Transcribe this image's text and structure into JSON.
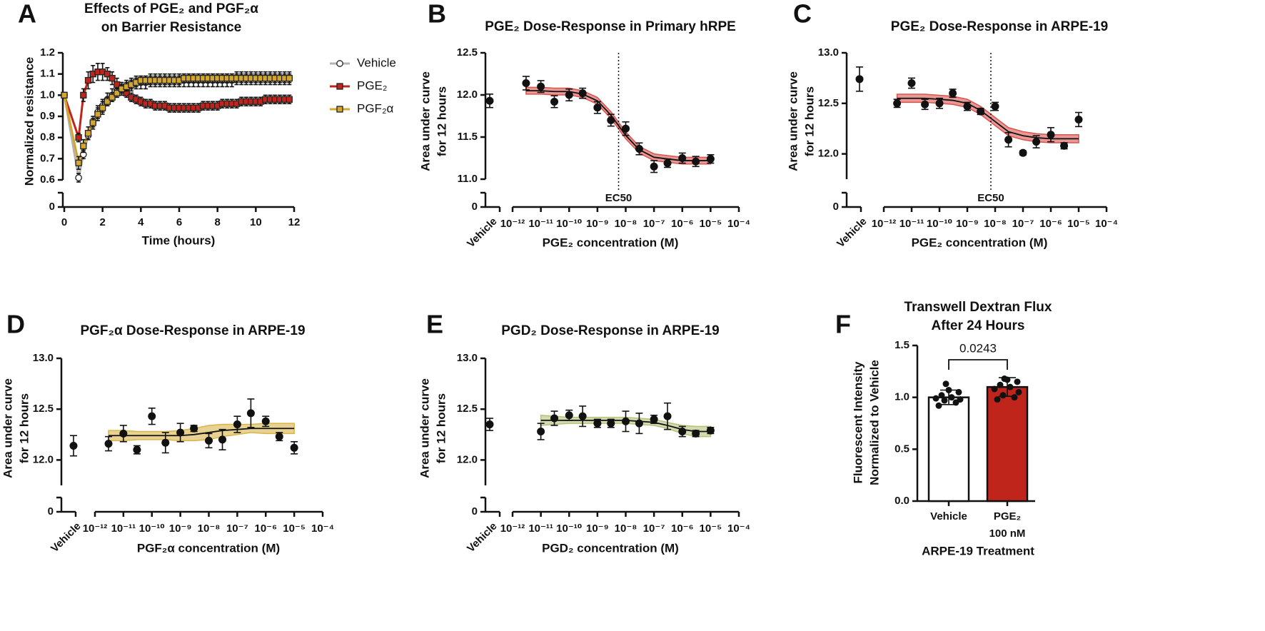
{
  "chart_data": [
    {
      "type": "line",
      "panel": "A",
      "title": [
        "Effects of PGE₂ and PGF₂α",
        "on Barrier Resistance"
      ],
      "xlabel": "Time (hours)",
      "ylabel": [
        "Normalized resistance"
      ],
      "xlim": [
        0,
        12
      ],
      "xticks": [
        0,
        2,
        4,
        6,
        8,
        10,
        12
      ],
      "ylim": [
        0.6,
        1.2
      ],
      "yticks": [
        0.6,
        0.7,
        0.8,
        0.9,
        {
          "value": 1,
          "label": "1.0"
        },
        1.1,
        1.2
      ],
      "ybreak_ticks": [
        0
      ],
      "x": [
        0,
        0.75,
        1,
        1.25,
        1.5,
        1.75,
        2,
        2.25,
        2.5,
        2.75,
        3,
        3.25,
        3.5,
        3.75,
        4,
        4.25,
        4.5,
        4.75,
        5,
        5.25,
        5.5,
        5.75,
        6,
        6.25,
        6.5,
        6.75,
        7,
        7.25,
        7.5,
        7.75,
        8,
        8.25,
        8.5,
        8.75,
        9,
        9.25,
        9.5,
        9.75,
        10,
        10.25,
        10.5,
        10.75,
        11,
        11.25,
        11.5,
        11.75
      ],
      "series": [
        {
          "name": "Vehicle",
          "color": "#b3b3b3",
          "marker": "circle",
          "values": [
            1.0,
            0.61,
            0.72,
            0.81,
            0.87,
            0.92,
            0.95,
            0.98,
            1.0,
            1.02,
            1.03,
            1.04,
            1.05,
            1.06,
            1.06,
            1.06,
            1.07,
            1.07,
            1.07,
            1.07,
            1.07,
            1.07,
            1.07,
            1.07,
            1.07,
            1.07,
            1.07,
            1.07,
            1.07,
            1.07,
            1.07,
            1.07,
            1.07,
            1.07,
            1.08,
            1.08,
            1.08,
            1.08,
            1.08,
            1.08,
            1.08,
            1.08,
            1.08,
            1.08,
            1.08,
            1.08
          ],
          "errors": [
            0,
            0.02,
            0.02,
            0.02,
            0.02,
            0.03,
            0.03,
            0.03,
            0.03,
            0.03,
            0.03,
            0.03,
            0.03,
            0.03,
            0.03,
            0.03,
            0.03,
            0.03,
            0.03,
            0.03,
            0.03,
            0.03,
            0.03,
            0.03,
            0.03,
            0.03,
            0.03,
            0.03,
            0.03,
            0.03,
            0.03,
            0.03,
            0.03,
            0.03,
            0.03,
            0.03,
            0.03,
            0.03,
            0.03,
            0.03,
            0.03,
            0.03,
            0.03,
            0.03,
            0.03,
            0.03
          ]
        },
        {
          "name": "PGE₂",
          "color": "#c0251c",
          "marker": "square",
          "values": [
            1.0,
            0.8,
            1.0,
            1.07,
            1.1,
            1.11,
            1.11,
            1.1,
            1.08,
            1.05,
            1.03,
            1.01,
            0.99,
            0.98,
            0.97,
            0.96,
            0.96,
            0.95,
            0.95,
            0.95,
            0.94,
            0.94,
            0.94,
            0.94,
            0.94,
            0.94,
            0.94,
            0.95,
            0.95,
            0.95,
            0.95,
            0.96,
            0.96,
            0.96,
            0.96,
            0.97,
            0.97,
            0.97,
            0.97,
            0.97,
            0.98,
            0.98,
            0.98,
            0.98,
            0.98,
            0.98
          ],
          "errors": [
            0,
            0.02,
            0.03,
            0.04,
            0.04,
            0.04,
            0.04,
            0.03,
            0.03,
            0.03,
            0.02,
            0.02,
            0.02,
            0.02,
            0.02,
            0.02,
            0.02,
            0.02,
            0.02,
            0.02,
            0.02,
            0.02,
            0.02,
            0.02,
            0.02,
            0.02,
            0.02,
            0.02,
            0.02,
            0.02,
            0.02,
            0.02,
            0.02,
            0.02,
            0.02,
            0.02,
            0.02,
            0.02,
            0.02,
            0.02,
            0.02,
            0.02,
            0.02,
            0.02,
            0.02,
            0.02
          ]
        },
        {
          "name": "PGF₂α",
          "color": "#d4a72c",
          "marker": "square",
          "values": [
            1.0,
            0.68,
            0.76,
            0.82,
            0.87,
            0.91,
            0.94,
            0.97,
            0.99,
            1.01,
            1.03,
            1.04,
            1.05,
            1.06,
            1.07,
            1.07,
            1.07,
            1.07,
            1.07,
            1.07,
            1.07,
            1.07,
            1.07,
            1.08,
            1.08,
            1.08,
            1.08,
            1.08,
            1.08,
            1.08,
            1.08,
            1.08,
            1.08,
            1.08,
            1.08,
            1.08,
            1.08,
            1.08,
            1.08,
            1.08,
            1.08,
            1.08,
            1.08,
            1.08,
            1.08,
            1.08
          ],
          "errors": [
            0,
            0.03,
            0.03,
            0.03,
            0.03,
            0.03,
            0.03,
            0.02,
            0.02,
            0.02,
            0.02,
            0.02,
            0.02,
            0.02,
            0.02,
            0.02,
            0.02,
            0.02,
            0.02,
            0.02,
            0.02,
            0.02,
            0.02,
            0.02,
            0.02,
            0.02,
            0.02,
            0.02,
            0.02,
            0.02,
            0.02,
            0.02,
            0.02,
            0.02,
            0.02,
            0.02,
            0.02,
            0.02,
            0.02,
            0.02,
            0.02,
            0.02,
            0.02,
            0.02,
            0.02,
            0.02
          ]
        }
      ]
    },
    {
      "type": "scatter",
      "panel": "B",
      "title": [
        "PGE₂ Dose-Response in Primary hRPE"
      ],
      "xlabel": "PGE₂ concentration (M)",
      "ylabel": [
        "Area under curve",
        "for 12 hours"
      ],
      "xscale": "log",
      "xlim": [
        1e-12,
        0.0001
      ],
      "xticks": [
        {
          "value": 1e-12,
          "label": "10⁻¹²"
        },
        {
          "value": 1e-11,
          "label": "10⁻¹¹"
        },
        {
          "value": 1e-10,
          "label": "10⁻¹⁰"
        },
        {
          "value": 1e-09,
          "label": "10⁻⁹"
        },
        {
          "value": 1e-08,
          "label": "10⁻⁸"
        },
        {
          "value": 1e-07,
          "label": "10⁻⁷"
        },
        {
          "value": 1e-06,
          "label": "10⁻⁶"
        },
        {
          "value": 1e-05,
          "label": "10⁻⁵"
        },
        {
          "value": 0.0001,
          "label": "10⁻⁴"
        }
      ],
      "ylim": [
        11.0,
        12.5
      ],
      "yticks": [
        {
          "value": 11,
          "label": "11.0"
        },
        11.5,
        {
          "value": 12,
          "label": "12.0"
        },
        12.5
      ],
      "ybreak_ticks": [
        0
      ],
      "vehicle": {
        "label": "Vehicle",
        "value": 11.93,
        "error": 0.08
      },
      "x": [
        3e-12,
        1e-11,
        3e-11,
        1e-10,
        3e-10,
        1e-09,
        3e-09,
        1e-08,
        3e-08,
        1e-07,
        3e-07,
        1e-06,
        3e-06,
        1e-05
      ],
      "values": [
        12.14,
        12.1,
        11.92,
        12.0,
        12.02,
        11.85,
        11.7,
        11.6,
        11.36,
        11.15,
        11.19,
        11.25,
        11.21,
        11.24
      ],
      "errors": [
        0.08,
        0.07,
        0.07,
        0.07,
        0.06,
        0.07,
        0.07,
        0.08,
        0.07,
        0.07,
        0.05,
        0.06,
        0.06,
        0.05
      ],
      "fit_values": [
        12.05,
        12.05,
        12.04,
        12.04,
        12.01,
        11.93,
        11.76,
        11.52,
        11.35,
        11.26,
        11.24,
        11.22,
        11.22,
        11.22
      ],
      "fit_upper": [
        12.09,
        12.09,
        12.08,
        12.08,
        12.05,
        11.97,
        11.8,
        11.56,
        11.39,
        11.3,
        11.28,
        11.26,
        11.26,
        11.26
      ],
      "fit_lower": [
        12.01,
        12.01,
        12.0,
        12.0,
        11.97,
        11.89,
        11.72,
        11.48,
        11.31,
        11.22,
        11.2,
        11.18,
        11.18,
        11.18
      ],
      "fit_color": "#d9534f",
      "ec50": {
        "value": 5.6e-09,
        "label": "EC50"
      }
    },
    {
      "type": "scatter",
      "panel": "C",
      "title": [
        "PGE₂ Dose-Response in ARPE-19"
      ],
      "xlabel": "PGE₂ concentration (M)",
      "ylabel": [
        "Area under curve",
        "for 12 hours"
      ],
      "xscale": "log",
      "xlim": [
        1e-12,
        0.0001
      ],
      "xticks": [
        {
          "value": 1e-12,
          "label": "10⁻¹²"
        },
        {
          "value": 1e-11,
          "label": "10⁻¹¹"
        },
        {
          "value": 1e-10,
          "label": "10⁻¹⁰"
        },
        {
          "value": 1e-09,
          "label": "10⁻⁹"
        },
        {
          "value": 1e-08,
          "label": "10⁻⁸"
        },
        {
          "value": 1e-07,
          "label": "10⁻⁷"
        },
        {
          "value": 1e-06,
          "label": "10⁻⁶"
        },
        {
          "value": 1e-05,
          "label": "10⁻⁵"
        },
        {
          "value": 0.0001,
          "label": "10⁻⁴"
        }
      ],
      "ylim": [
        11.75,
        13.0
      ],
      "yticks": [
        {
          "value": 12,
          "label": "12.0"
        },
        12.5,
        {
          "value": 13,
          "label": "13.0"
        }
      ],
      "ybreak_ticks": [
        0
      ],
      "vehicle": {
        "label": "Vehicle",
        "value": 12.74,
        "error": 0.12
      },
      "x": [
        3e-12,
        1e-11,
        3e-11,
        1e-10,
        3e-10,
        1e-09,
        3e-09,
        1e-08,
        3e-08,
        1e-07,
        3e-07,
        1e-06,
        3e-06,
        1e-05
      ],
      "values": [
        12.5,
        12.7,
        12.49,
        12.5,
        12.6,
        12.47,
        12.42,
        12.47,
        12.14,
        12.01,
        12.12,
        12.19,
        12.08,
        12.34
      ],
      "errors": [
        0.04,
        0.05,
        0.05,
        0.05,
        0.04,
        0.04,
        0.03,
        0.04,
        0.07,
        0.02,
        0.06,
        0.07,
        0.03,
        0.07
      ],
      "fit_values": [
        12.55,
        12.55,
        12.55,
        12.54,
        12.53,
        12.5,
        12.43,
        12.32,
        12.22,
        12.18,
        12.16,
        12.15,
        12.15,
        12.15
      ],
      "fit_upper": [
        12.59,
        12.59,
        12.59,
        12.58,
        12.57,
        12.54,
        12.47,
        12.36,
        12.26,
        12.22,
        12.2,
        12.19,
        12.19,
        12.19
      ],
      "fit_lower": [
        12.51,
        12.51,
        12.51,
        12.5,
        12.49,
        12.46,
        12.39,
        12.28,
        12.18,
        12.14,
        12.12,
        12.11,
        12.11,
        12.11
      ],
      "fit_color": "#d9534f",
      "ec50": {
        "value": 7e-09,
        "label": "EC50"
      }
    },
    {
      "type": "scatter",
      "panel": "D",
      "title": [
        "PGF₂α Dose-Response in ARPE-19"
      ],
      "xlabel": "PGF₂α concentration (M)",
      "ylabel": [
        "Area under curve",
        "for 12 hours"
      ],
      "xscale": "log",
      "xlim": [
        1e-12,
        0.0001
      ],
      "xticks": [
        {
          "value": 1e-12,
          "label": "10⁻¹²"
        },
        {
          "value": 1e-11,
          "label": "10⁻¹¹"
        },
        {
          "value": 1e-10,
          "label": "10⁻¹⁰"
        },
        {
          "value": 1e-09,
          "label": "10⁻⁹"
        },
        {
          "value": 1e-08,
          "label": "10⁻⁸"
        },
        {
          "value": 1e-07,
          "label": "10⁻⁷"
        },
        {
          "value": 1e-06,
          "label": "10⁻⁶"
        },
        {
          "value": 1e-05,
          "label": "10⁻⁵"
        },
        {
          "value": 0.0001,
          "label": "10⁻⁴"
        }
      ],
      "ylim": [
        11.75,
        13.0
      ],
      "yticks": [
        {
          "value": 12,
          "label": "12.0"
        },
        12.5,
        {
          "value": 13,
          "label": "13.0"
        }
      ],
      "ybreak_ticks": [
        0
      ],
      "vehicle": {
        "label": "Vehicle",
        "value": 12.14,
        "error": 0.1
      },
      "x": [
        3e-12,
        1e-11,
        3e-11,
        1e-10,
        3e-10,
        1e-09,
        3e-09,
        1e-08,
        3e-08,
        1e-07,
        3e-07,
        1e-06,
        3e-06,
        1e-05
      ],
      "values": [
        12.16,
        12.26,
        12.1,
        12.43,
        12.17,
        12.27,
        12.31,
        12.19,
        12.2,
        12.35,
        12.46,
        12.38,
        12.23,
        12.12
      ],
      "errors": [
        0.07,
        0.08,
        0.04,
        0.08,
        0.1,
        0.09,
        0.03,
        0.07,
        0.1,
        0.08,
        0.14,
        0.05,
        0.04,
        0.06
      ],
      "fit_values": [
        12.24,
        12.24,
        12.24,
        12.24,
        12.24,
        12.24,
        12.25,
        12.27,
        12.29,
        12.3,
        12.31,
        12.31,
        12.31,
        12.31
      ],
      "fit_upper": [
        12.29,
        12.29,
        12.28,
        12.28,
        12.28,
        12.29,
        12.31,
        12.34,
        12.35,
        12.35,
        12.35,
        12.36,
        12.36,
        12.36
      ],
      "fit_lower": [
        12.19,
        12.19,
        12.2,
        12.2,
        12.2,
        12.19,
        12.19,
        12.2,
        12.23,
        12.25,
        12.27,
        12.26,
        12.26,
        12.26
      ],
      "fit_color": "#d9b44a"
    },
    {
      "type": "scatter",
      "panel": "E",
      "title": [
        "PGD₂ Dose-Response in ARPE-19"
      ],
      "xlabel": "PGD₂ concentration (M)",
      "ylabel": [
        "Area under curve",
        "for 12 hours"
      ],
      "xscale": "log",
      "xlim": [
        1e-12,
        0.0001
      ],
      "xticks": [
        {
          "value": 1e-12,
          "label": "10⁻¹²"
        },
        {
          "value": 1e-11,
          "label": "10⁻¹¹"
        },
        {
          "value": 1e-10,
          "label": "10⁻¹⁰"
        },
        {
          "value": 1e-09,
          "label": "10⁻⁹"
        },
        {
          "value": 1e-08,
          "label": "10⁻⁸"
        },
        {
          "value": 1e-07,
          "label": "10⁻⁷"
        },
        {
          "value": 1e-06,
          "label": "10⁻⁶"
        },
        {
          "value": 1e-05,
          "label": "10⁻⁵"
        },
        {
          "value": 0.0001,
          "label": "10⁻⁴"
        }
      ],
      "ylim": [
        11.75,
        13.0
      ],
      "yticks": [
        {
          "value": 12,
          "label": "12.0"
        },
        12.5,
        {
          "value": 13,
          "label": "13.0"
        }
      ],
      "ybreak_ticks": [
        0
      ],
      "vehicle": {
        "label": "Vehicle",
        "value": 12.35,
        "error": 0.06
      },
      "x": [
        1e-11,
        3e-11,
        1e-10,
        3e-10,
        1e-09,
        3e-09,
        1e-08,
        3e-08,
        1e-07,
        3e-07,
        1e-06,
        3e-06,
        1e-05
      ],
      "values": [
        12.28,
        12.41,
        12.44,
        12.43,
        12.36,
        12.36,
        12.38,
        12.36,
        12.4,
        12.43,
        12.28,
        12.26,
        12.29
      ],
      "errors": [
        0.08,
        0.07,
        0.05,
        0.1,
        0.04,
        0.04,
        0.1,
        0.1,
        0.04,
        0.13,
        0.05,
        0.03,
        0.03
      ],
      "fit_values": [
        12.39,
        12.39,
        12.39,
        12.39,
        12.39,
        12.39,
        12.39,
        12.38,
        12.37,
        12.34,
        12.3,
        12.28,
        12.28
      ],
      "fit_upper": [
        12.44,
        12.43,
        12.42,
        12.42,
        12.42,
        12.42,
        12.42,
        12.41,
        12.4,
        12.37,
        12.34,
        12.33,
        12.33
      ],
      "fit_lower": [
        12.34,
        12.35,
        12.36,
        12.36,
        12.36,
        12.36,
        12.36,
        12.35,
        12.34,
        12.31,
        12.26,
        12.23,
        12.23
      ],
      "fit_color": "#b5c27a"
    },
    {
      "type": "bar",
      "panel": "F",
      "title": [
        "Transwell Dextran Flux",
        "After 24 Hours"
      ],
      "xlabel": "ARPE-19 Treatment",
      "ylabel": [
        "Fluorescent Intensity",
        "Normalized to Vehicle"
      ],
      "categories": [
        [
          "Vehicle"
        ],
        [
          "PGE₂",
          "100 nM"
        ]
      ],
      "values": [
        1.0,
        1.1
      ],
      "errors": [
        0.07,
        0.09
      ],
      "colors": [
        "#ffffff",
        "#c0251c"
      ],
      "points": [
        [
          0.92,
          0.95,
          0.97,
          0.98,
          0.99,
          1.0,
          1.02,
          1.05,
          1.07,
          1.13
        ],
        [
          0.98,
          1.0,
          1.02,
          1.05,
          1.08,
          1.1,
          1.12,
          1.15,
          1.17,
          1.18
        ]
      ],
      "ylim": [
        0,
        1.5
      ],
      "yticks": [
        {
          "value": 0,
          "label": "0.0"
        },
        0.5,
        {
          "value": 1,
          "label": "1.0"
        },
        1.5
      ],
      "annotation": "0.0243"
    }
  ]
}
